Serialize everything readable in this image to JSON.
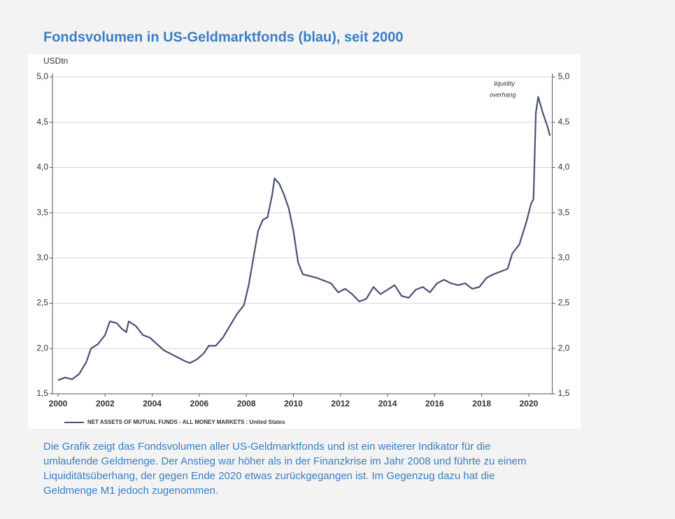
{
  "chart_data": {
    "type": "line",
    "title": "Fondsvolumen in US-Geldmarktfonds (blau), seit 2000",
    "y_label": "USDtn",
    "annotations": [
      "liquidity",
      "overhang"
    ],
    "caption": "Die Grafik zeigt das Fondsvolumen aller US-Geldmarktfonds und ist ein weiterer Indikator für die umlaufende Geldmenge. Der Anstieg war höher als in der Finanzkrise im Jahr 2008 und führte zu einem Liquiditätsüberhang, der gegen Ende 2020 etwas zurückgegangen ist. Im Gegenzug dazu hat die Geldmenge M1 jedoch zugenommen.",
    "x": [
      2000.0,
      2000.3,
      2000.6,
      2000.9,
      2001.2,
      2001.4,
      2001.7,
      2002.0,
      2002.2,
      2002.5,
      2002.7,
      2002.9,
      2003.0,
      2003.3,
      2003.6,
      2003.9,
      2004.2,
      2004.5,
      2004.8,
      2005.1,
      2005.4,
      2005.6,
      2005.9,
      2006.2,
      2006.4,
      2006.7,
      2007.0,
      2007.3,
      2007.6,
      2007.9,
      2008.1,
      2008.3,
      2008.5,
      2008.7,
      2008.9,
      2009.1,
      2009.2,
      2009.4,
      2009.6,
      2009.8,
      2010.0,
      2010.2,
      2010.4,
      2010.7,
      2011.0,
      2011.3,
      2011.6,
      2011.9,
      2012.2,
      2012.5,
      2012.8,
      2013.1,
      2013.4,
      2013.7,
      2014.0,
      2014.3,
      2014.6,
      2014.9,
      2015.2,
      2015.5,
      2015.8,
      2016.1,
      2016.4,
      2016.7,
      2017.0,
      2017.3,
      2017.6,
      2017.9,
      2018.2,
      2018.5,
      2018.8,
      2019.1,
      2019.3,
      2019.6,
      2019.9,
      2020.1,
      2020.2,
      2020.3,
      2020.4,
      2020.6,
      2020.8,
      2020.9
    ],
    "series": [
      {
        "name": "NET ASSETS OF MUTUAL FUNDS - ALL MONEY MARKETS : United States",
        "color": "#4a5275",
        "values": [
          1.65,
          1.68,
          1.66,
          1.72,
          1.85,
          2.0,
          2.05,
          2.15,
          2.3,
          2.28,
          2.22,
          2.18,
          2.3,
          2.25,
          2.15,
          2.12,
          2.05,
          1.98,
          1.94,
          1.9,
          1.86,
          1.84,
          1.88,
          1.95,
          2.03,
          2.03,
          2.12,
          2.25,
          2.38,
          2.48,
          2.7,
          3.0,
          3.3,
          3.42,
          3.45,
          3.7,
          3.88,
          3.82,
          3.7,
          3.55,
          3.3,
          2.95,
          2.82,
          2.8,
          2.78,
          2.75,
          2.72,
          2.62,
          2.66,
          2.6,
          2.52,
          2.55,
          2.68,
          2.6,
          2.65,
          2.7,
          2.58,
          2.56,
          2.65,
          2.68,
          2.62,
          2.72,
          2.76,
          2.72,
          2.7,
          2.72,
          2.66,
          2.68,
          2.78,
          2.82,
          2.85,
          2.88,
          3.05,
          3.15,
          3.4,
          3.6,
          3.65,
          4.6,
          4.78,
          4.6,
          4.45,
          4.35
        ]
      }
    ],
    "xlim": [
      2000,
      2021
    ],
    "xticks": [
      2000,
      2002,
      2004,
      2006,
      2008,
      2010,
      2012,
      2014,
      2016,
      2018,
      2020
    ],
    "ylim": [
      1.5,
      5
    ],
    "yticks": [
      {
        "value": 1.5,
        "label": "1,5"
      },
      {
        "value": 2,
        "label": "2,0"
      },
      {
        "value": 2.5,
        "label": "2,5"
      },
      {
        "value": 3,
        "label": "3,0"
      },
      {
        "value": 3.5,
        "label": "3,5"
      },
      {
        "value": 4,
        "label": "4,0"
      },
      {
        "value": 4.5,
        "label": "4,5"
      },
      {
        "value": 5,
        "label": "5,0"
      }
    ],
    "y2lim": [
      1.5,
      5
    ],
    "y2ticks": [
      {
        "value": 1.5,
        "label": "1,5"
      },
      {
        "value": 2,
        "label": "2,0"
      },
      {
        "value": 2.5,
        "label": "2,5"
      },
      {
        "value": 3,
        "label": "3,0"
      },
      {
        "value": 3.5,
        "label": "3,5"
      },
      {
        "value": 4,
        "label": "4,0"
      },
      {
        "value": 4.5,
        "label": "4,5"
      },
      {
        "value": 5,
        "label": "5,0"
      }
    ],
    "grid": true
  }
}
